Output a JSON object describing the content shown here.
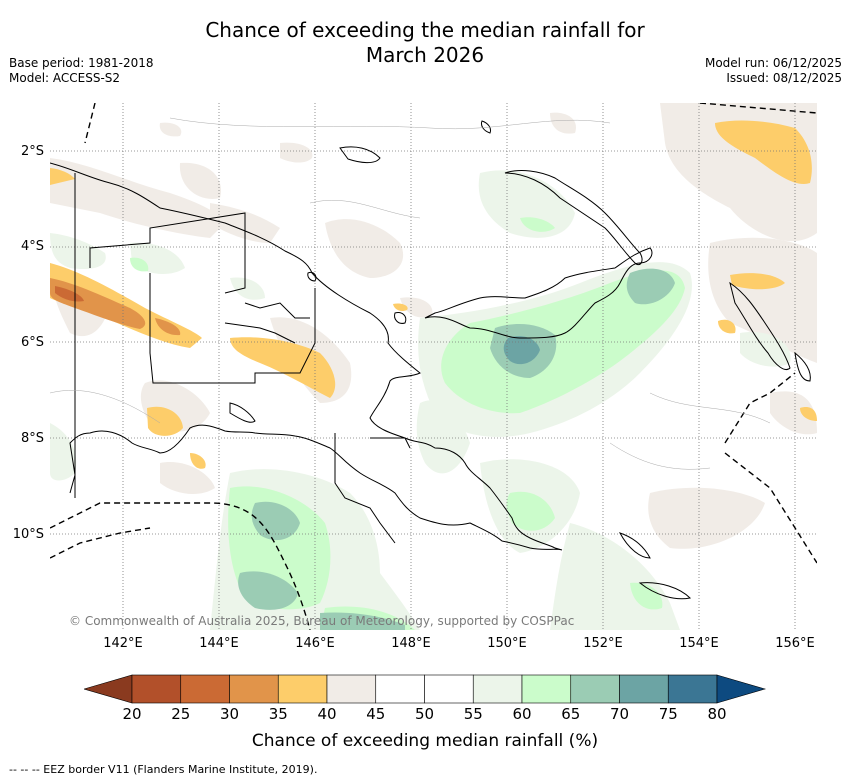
{
  "title_line1": "Chance of exceeding the median rainfall for",
  "title_line2": "March 2026",
  "base_period": "Base period: 1981-2018",
  "model": "Model: ACCESS-S2",
  "model_run": "Model run: 06/12/2025",
  "issued": "Issued: 08/12/2025",
  "lat_labels": [
    "2°S",
    "4°S",
    "6°S",
    "8°S",
    "10°S"
  ],
  "lon_labels": [
    "142°E",
    "144°E",
    "146°E",
    "148°E",
    "150°E",
    "152°E",
    "154°E",
    "156°E"
  ],
  "credit": "© Commonwealth of Australia 2025, Bureau of Meteorology, supported by COSPPac",
  "colorbar": {
    "ticks": [
      "20",
      "25",
      "30",
      "35",
      "40",
      "45",
      "50",
      "55",
      "60",
      "65",
      "70",
      "75",
      "80"
    ],
    "colors": [
      "#b2502a",
      "#cb6a34",
      "#e1944a",
      "#fdcd6a",
      "#f1ece7",
      "#ffffff",
      "#ffffff",
      "#ecf5ea",
      "#cbfccb",
      "#9bccb4",
      "#6ca4a4",
      "#3b7694"
    ],
    "under_color": "#8a3a1f",
    "over_color": "#0d4a80",
    "label": "Chance of exceeding median rainfall (%)"
  },
  "footer": "--  --  -- EEZ border V11 (Flanders Marine Institute, 2019)."
}
